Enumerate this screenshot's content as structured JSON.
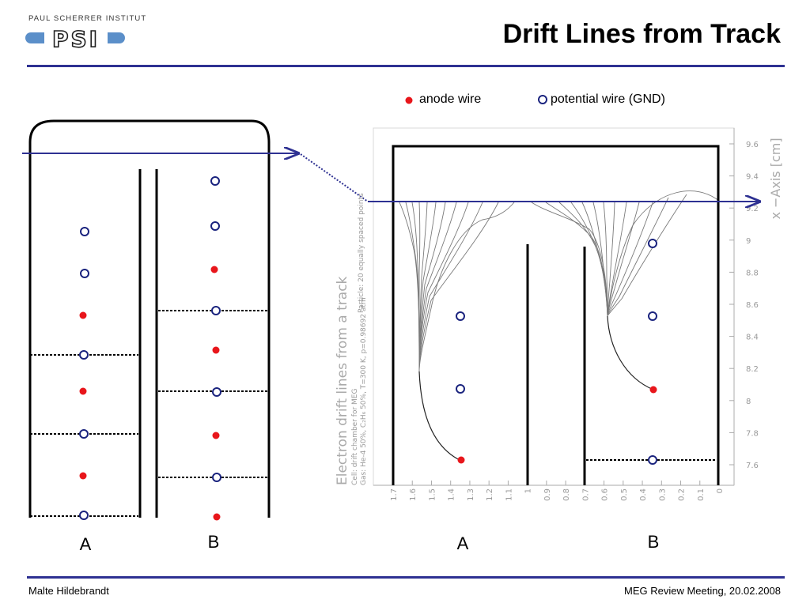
{
  "header": {
    "institute": "PAUL SCHERRER INSTITUT",
    "logo_text": "PSI",
    "title": "Drift Lines from Track"
  },
  "legend": {
    "anode_label": "anode wire",
    "potential_label": "potential wire (GND)"
  },
  "left_diagram": {
    "label_a": "A",
    "label_b": "B"
  },
  "right_plot": {
    "label_a": "A",
    "label_b": "B",
    "y_axis_title": "x −Axis [cm]",
    "y_ticks": [
      "9.6",
      "9.4",
      "9.2",
      "9",
      "8.8",
      "8.6",
      "8.4",
      "8.2",
      "8",
      "7.8",
      "7.6"
    ],
    "x_ticks": [
      "1.7",
      "1.6",
      "1.5",
      "1.4",
      "1.3",
      "1.2",
      "1.1",
      "1",
      "0.9",
      "0.8",
      "0.7",
      "0.6",
      "0.5",
      "0.4",
      "0.3",
      "0.2",
      "0.1",
      "0"
    ],
    "side_title": "Electron drift lines from a track",
    "side_info_1": "Cell: drift chamber for MEG",
    "side_info_2": "Gas: He-4 50%, C₂H₆ 50%, T=300 K, p=0.98692 atm",
    "side_info_3": "Particle: 20 equally spaced points"
  },
  "footer": {
    "author": "Malte Hildebrandt",
    "event": "MEG Review Meeting, 20.02.2008"
  },
  "colors": {
    "accent": "#2e3192",
    "anode": "#e8161b",
    "potential": "#1a237e",
    "logo_blue": "#5b8fc9"
  }
}
